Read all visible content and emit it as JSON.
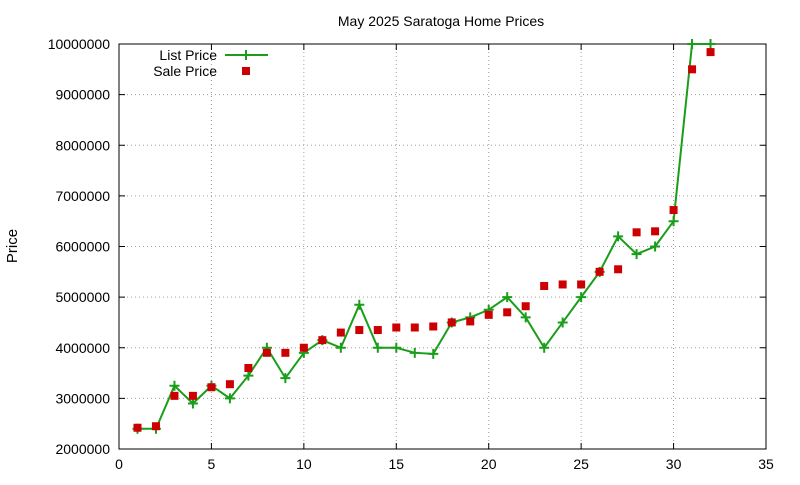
{
  "chart_data": {
    "type": "line",
    "title": "May 2025 Saratoga Home Prices",
    "xlabel": "",
    "ylabel": "Price",
    "xlim": [
      0,
      35
    ],
    "ylim": [
      2000000,
      10000000
    ],
    "x_ticks": [
      0,
      5,
      10,
      15,
      20,
      25,
      30,
      35
    ],
    "y_ticks": [
      2000000,
      3000000,
      4000000,
      5000000,
      6000000,
      7000000,
      8000000,
      9000000,
      10000000
    ],
    "grid": true,
    "legend_position": "top-left",
    "series": [
      {
        "name": "List Price",
        "style": "line-with-plus-markers",
        "color": "#1a9e1a",
        "x": [
          1,
          2,
          3,
          4,
          5,
          6,
          7,
          8,
          9,
          10,
          11,
          12,
          13,
          14,
          15,
          16,
          17,
          18,
          19,
          20,
          21,
          22,
          23,
          24,
          25,
          26,
          27,
          28,
          29,
          30,
          31,
          32
        ],
        "values": [
          2400000,
          2400000,
          3250000,
          2900000,
          3250000,
          3000000,
          3450000,
          4000000,
          3400000,
          3900000,
          4150000,
          4000000,
          4850000,
          4000000,
          4000000,
          3900000,
          3880000,
          4500000,
          4600000,
          4750000,
          5000000,
          4600000,
          4000000,
          4500000,
          5000000,
          5500000,
          6200000,
          5850000,
          6000000,
          6500000,
          10000000,
          10000000
        ]
      },
      {
        "name": "Sale Price",
        "style": "square-markers",
        "color": "#cc0000",
        "x": [
          1,
          2,
          3,
          4,
          5,
          6,
          7,
          8,
          9,
          10,
          11,
          12,
          13,
          14,
          15,
          16,
          17,
          18,
          19,
          20,
          21,
          22,
          23,
          24,
          25,
          26,
          27,
          28,
          29,
          30,
          31,
          32
        ],
        "values": [
          2420000,
          2450000,
          3050000,
          3050000,
          3220000,
          3280000,
          3600000,
          3900000,
          3900000,
          4000000,
          4150000,
          4300000,
          4350000,
          4350000,
          4400000,
          4400000,
          4420000,
          4500000,
          4520000,
          4650000,
          4700000,
          4820000,
          5220000,
          5250000,
          5250000,
          5500000,
          5550000,
          6280000,
          6300000,
          6720000,
          9500000,
          9840000
        ]
      }
    ]
  }
}
